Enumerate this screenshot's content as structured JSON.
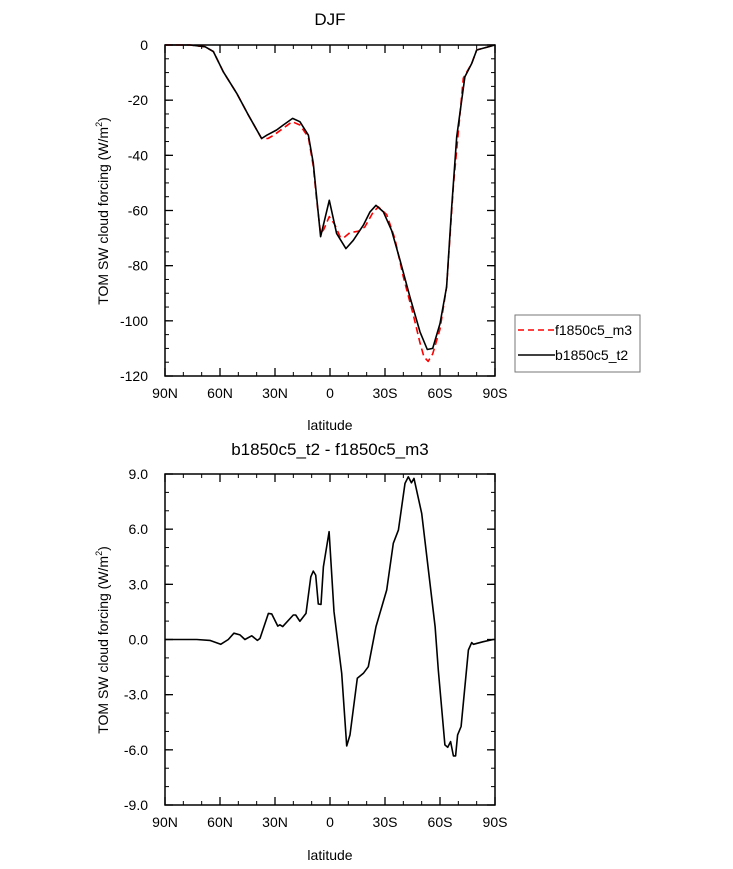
{
  "chart_data": [
    {
      "type": "line",
      "title": "DJF",
      "xlabel": "latitude",
      "ylabel": "TOM SW cloud forcing (W/m",
      "ylabel_sup": "2",
      "ylabel_end": ")",
      "xlim": [
        90,
        -90
      ],
      "ylim": [
        -120,
        0
      ],
      "xticks": [
        90,
        60,
        30,
        0,
        -30,
        -60,
        -90
      ],
      "xtick_labels": [
        "90N",
        "60N",
        "30N",
        "0",
        "30S",
        "60S",
        "90S"
      ],
      "yticks": [
        0,
        -20,
        -40,
        -60,
        -80,
        -100,
        -120
      ],
      "ytick_labels": [
        "0",
        "-20",
        "-40",
        "-60",
        "-80",
        "-100",
        "-120"
      ],
      "x_minor_step": 10,
      "y_minor_step": 5,
      "legend": {
        "placement": "right-outside",
        "entries": [
          "f1850c5_m3",
          "b1850c5_t2"
        ]
      },
      "series": [
        {
          "name": "f1850c5_m3",
          "color": "#ff0000",
          "dash": true,
          "x": [
            90,
            76.4,
            68.2,
            63.6,
            58.2,
            50.9,
            44.5,
            37.3,
            33.9,
            30.7,
            20.6,
            16.4,
            11.8,
            9.1,
            7.3,
            5.1,
            3.5,
            0.4,
            -2.5,
            -5.5,
            -7.3,
            -10.9,
            -15.5,
            -19,
            -23.6,
            -26.4,
            -30.9,
            -35.3,
            -40,
            -45.5,
            -49.1,
            -51.2,
            -53.5,
            -56,
            -60,
            -63.6,
            -67.3,
            -72.7,
            -77.3,
            -80,
            -90
          ],
          "y": [
            0,
            0,
            -0.6,
            -2.4,
            -9.7,
            -17.5,
            -25.4,
            -33.9,
            -33.9,
            -32.7,
            -27.8,
            -29,
            -33.5,
            -44,
            -56,
            -68.3,
            -67,
            -62.2,
            -65,
            -69.5,
            -70,
            -68,
            -67.5,
            -66,
            -60.5,
            -58.7,
            -61.5,
            -70,
            -84,
            -98,
            -108,
            -113,
            -114.7,
            -112,
            -103,
            -87.7,
            -51,
            -12,
            -6.7,
            -1.8,
            0
          ]
        },
        {
          "name": "b1850c5_t2",
          "color": "#000000",
          "dash": false,
          "x": [
            90,
            76.4,
            68.2,
            63.6,
            58.2,
            50.9,
            44.5,
            37.3,
            34.5,
            29.1,
            25.5,
            20.4,
            16.4,
            11.8,
            9.1,
            7.3,
            5.1,
            0.4,
            -3.6,
            -8.7,
            -12.7,
            -18.2,
            -21.8,
            -25.1,
            -29.1,
            -33.6,
            -38.2,
            -43.6,
            -49.1,
            -53.1,
            -56,
            -60,
            -63.6,
            -66.4,
            -69.1,
            -73.6,
            -77.3,
            -80,
            -90
          ],
          "y": [
            0,
            0,
            -0.6,
            -2.4,
            -9.7,
            -17.5,
            -25.4,
            -33.9,
            -32.7,
            -30.8,
            -29,
            -26.6,
            -27.8,
            -32.7,
            -42.9,
            -55,
            -69.5,
            -56.3,
            -68.3,
            -73.8,
            -70.8,
            -65.3,
            -60.5,
            -58.1,
            -60.5,
            -67.2,
            -78,
            -91.3,
            -104,
            -110.4,
            -110,
            -101,
            -87.7,
            -58.7,
            -33.3,
            -11.5,
            -6.7,
            -1.8,
            0
          ]
        }
      ]
    },
    {
      "type": "line",
      "title": "b1850c5_t2 - f1850c5_m3",
      "xlabel": "latitude",
      "ylabel": "TOM SW cloud forcing (W/m",
      "ylabel_sup": "2",
      "ylabel_end": ")",
      "xlim": [
        90,
        -90
      ],
      "ylim": [
        -9,
        9
      ],
      "xticks": [
        90,
        60,
        30,
        0,
        -30,
        -60,
        -90
      ],
      "xtick_labels": [
        "90N",
        "60N",
        "30N",
        "0",
        "30S",
        "60S",
        "90S"
      ],
      "yticks": [
        9,
        6,
        3,
        0,
        -3,
        -6,
        -9
      ],
      "ytick_labels": [
        "9.0",
        "6.0",
        "3.0",
        "0.0",
        "-3.0",
        "-6.0",
        "-9.0"
      ],
      "x_minor_step": 10,
      "y_minor_step": 1,
      "series": [
        {
          "name": "b1850c5_t2 - f1850c5_m3",
          "color": "#000000",
          "dash": false,
          "x": [
            90,
            72.7,
            65.5,
            59.6,
            55.5,
            52.4,
            49.1,
            46.4,
            42.7,
            39.6,
            38.2,
            33.6,
            31.8,
            28.5,
            27.3,
            25.8,
            20,
            18.7,
            16.4,
            13.1,
            10.5,
            9.1,
            7.8,
            6.4,
            4.9,
            3.6,
            0.5,
            -2.2,
            -6.4,
            -9.1,
            -10.9,
            -14.9,
            -18.2,
            -20.9,
            -25.1,
            -30.9,
            -34.5,
            -37.3,
            -40.9,
            -42.7,
            -44.4,
            -45.8,
            -50,
            -57.3,
            -59.1,
            -62.7,
            -64.2,
            -65.8,
            -67.3,
            -68.5,
            -69.6,
            -71.5,
            -75.5,
            -77.3,
            -78.2,
            -83.6,
            -89,
            -90
          ],
          "y": [
            0,
            0,
            -0.05,
            -0.26,
            0,
            0.34,
            0.25,
            0,
            0.2,
            -0.05,
            0.06,
            1.42,
            1.39,
            0.73,
            0.8,
            0.7,
            1.33,
            1.33,
            0.99,
            1.42,
            3.41,
            3.72,
            3.5,
            1.93,
            1.91,
            3.96,
            5.86,
            1.51,
            -1.84,
            -5.79,
            -5.19,
            -2.11,
            -1.84,
            -1.48,
            0.7,
            2.69,
            5.23,
            5.95,
            8.49,
            8.85,
            8.52,
            8.76,
            6.86,
            0.7,
            -1.66,
            -5.73,
            -5.86,
            -5.55,
            -6.33,
            -6.33,
            -5.19,
            -4.73,
            -0.57,
            -0.17,
            -0.26,
            -0.12,
            0,
            0
          ]
        }
      ]
    }
  ]
}
